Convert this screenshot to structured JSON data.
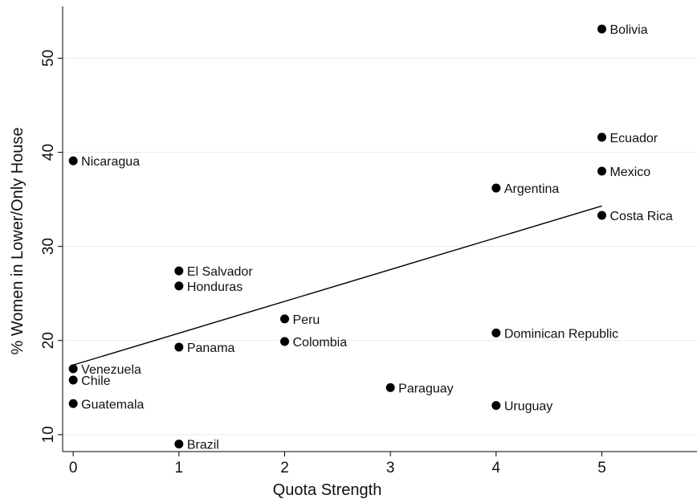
{
  "chart_data": {
    "type": "scatter",
    "xlabel": "Quota Strength",
    "ylabel": "% Women in Lower/Only House",
    "xlim": [
      -0.1,
      5.9
    ],
    "ylim": [
      8.2,
      55.5
    ],
    "x_ticks": [
      0,
      1,
      2,
      3,
      4,
      5
    ],
    "y_ticks": [
      10,
      20,
      30,
      40,
      50
    ],
    "grid": "horizontal",
    "points": [
      {
        "label": "Bolivia",
        "x": 5,
        "y": 53.1
      },
      {
        "label": "Ecuador",
        "x": 5,
        "y": 41.6
      },
      {
        "label": "Mexico",
        "x": 5,
        "y": 38.0
      },
      {
        "label": "Costa Rica",
        "x": 5,
        "y": 33.3
      },
      {
        "label": "Nicaragua",
        "x": 0,
        "y": 39.1
      },
      {
        "label": "Argentina",
        "x": 4,
        "y": 36.2
      },
      {
        "label": "El Salvador",
        "x": 1,
        "y": 27.4
      },
      {
        "label": "Honduras",
        "x": 1,
        "y": 25.8
      },
      {
        "label": "Peru",
        "x": 2,
        "y": 22.3
      },
      {
        "label": "Colombia",
        "x": 2,
        "y": 19.9
      },
      {
        "label": "Dominican Republic",
        "x": 4,
        "y": 20.8
      },
      {
        "label": "Panama",
        "x": 1,
        "y": 19.3
      },
      {
        "label": "Venezuela",
        "x": 0,
        "y": 17.0
      },
      {
        "label": "Chile",
        "x": 0,
        "y": 15.8
      },
      {
        "label": "Paraguay",
        "x": 3,
        "y": 15.0
      },
      {
        "label": "Guatemala",
        "x": 0,
        "y": 13.3
      },
      {
        "label": "Uruguay",
        "x": 4,
        "y": 13.1
      },
      {
        "label": "Brazil",
        "x": 1,
        "y": 9.0
      }
    ],
    "fit_line": {
      "x": [
        0,
        5
      ],
      "y": [
        17.4,
        34.3
      ]
    }
  }
}
